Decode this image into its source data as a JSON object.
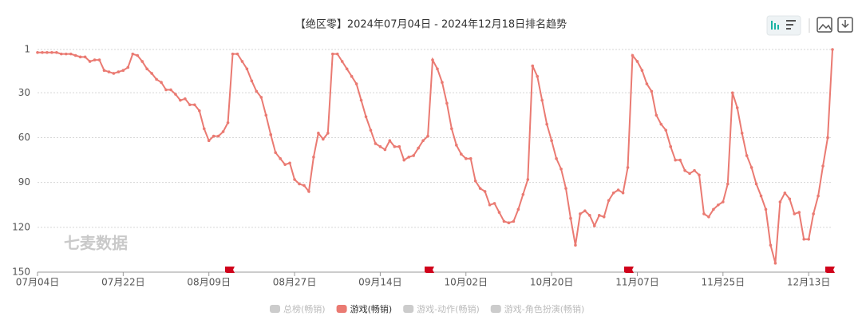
{
  "chart_data": {
    "type": "line",
    "title": "【绝区零】2024年07月04日 - 2024年12月18日排名趋势",
    "watermark": "七麦数据",
    "y_inverted": true,
    "grid": true,
    "ylim": [
      1,
      150
    ],
    "yticks": [
      1,
      30,
      60,
      90,
      120,
      150
    ],
    "categories": [
      "07月04日",
      null,
      null,
      null,
      null,
      null,
      null,
      null,
      null,
      null,
      null,
      null,
      null,
      null,
      null,
      null,
      null,
      null,
      "07月22日",
      null,
      null,
      null,
      null,
      null,
      null,
      null,
      null,
      null,
      null,
      null,
      null,
      null,
      null,
      null,
      null,
      null,
      "08月09日",
      null,
      null,
      null,
      null,
      null,
      null,
      null,
      null,
      null,
      null,
      null,
      null,
      null,
      null,
      null,
      null,
      null,
      "08月27日",
      null,
      null,
      null,
      null,
      null,
      null,
      null,
      null,
      null,
      null,
      null,
      null,
      null,
      null,
      null,
      null,
      null,
      "09月14日",
      null,
      null,
      null,
      null,
      null,
      null,
      null,
      null,
      null,
      null,
      null,
      null,
      null,
      null,
      null,
      null,
      null,
      "10月02日",
      null,
      null,
      null,
      null,
      null,
      null,
      null,
      null,
      null,
      null,
      null,
      null,
      null,
      null,
      null,
      null,
      null,
      "10月20日",
      null,
      null,
      null,
      null,
      null,
      null,
      null,
      null,
      null,
      null,
      null,
      null,
      null,
      null,
      null,
      null,
      null,
      "11月07日",
      null,
      null,
      null,
      null,
      null,
      null,
      null,
      null,
      null,
      null,
      null,
      null,
      null,
      null,
      null,
      null,
      null,
      "11月25日",
      null,
      null,
      null,
      null,
      null,
      null,
      null,
      null,
      null,
      null,
      null,
      null,
      null,
      null,
      null,
      null,
      null,
      "12月13日",
      null,
      null,
      null,
      null,
      null
    ],
    "series": [
      {
        "name": "总榜(畅销)",
        "color": "#cccccc",
        "visible": false
      },
      {
        "name": "游戏(畅销)",
        "color": "#ea7a72",
        "visible": true,
        "values": [
          3,
          3,
          3,
          3,
          3,
          4,
          4,
          4,
          5,
          6,
          6,
          9,
          8,
          8,
          15,
          16,
          17,
          16,
          15,
          13,
          4,
          5,
          9,
          14,
          17,
          21,
          23,
          28,
          28,
          31,
          35,
          34,
          38,
          38,
          42,
          54,
          62,
          59,
          59,
          56,
          50,
          4,
          4,
          9,
          14,
          22,
          29,
          33,
          45,
          58,
          70,
          74,
          78,
          77,
          88,
          91,
          92,
          96,
          73,
          57,
          61,
          57,
          4,
          4,
          9,
          14,
          19,
          24,
          35,
          46,
          55,
          64,
          66,
          68,
          62,
          66,
          66,
          75,
          73,
          72,
          67,
          62,
          59,
          8,
          14,
          23,
          37,
          54,
          65,
          71,
          74,
          74,
          89,
          94,
          96,
          105,
          104,
          110,
          116,
          117,
          116,
          108,
          98,
          88,
          12,
          19,
          35,
          51,
          62,
          74,
          81,
          94,
          114,
          132,
          111,
          109,
          112,
          119,
          112,
          113,
          102,
          97,
          95,
          97,
          80,
          5,
          9,
          15,
          24,
          29,
          45,
          51,
          55,
          66,
          75,
          75,
          82,
          84,
          82,
          85,
          111,
          113,
          108,
          105,
          103,
          91,
          30,
          40,
          57,
          72,
          80,
          91,
          99,
          108,
          132,
          144,
          103,
          97,
          101,
          111,
          110,
          128,
          128,
          111,
          99,
          79,
          60,
          1
        ]
      },
      {
        "name": "游戏-动作(畅销)",
        "color": "#cccccc",
        "visible": false
      },
      {
        "name": "游戏-角色扮演(畅销)",
        "color": "#cccccc",
        "visible": false
      }
    ]
  }
}
